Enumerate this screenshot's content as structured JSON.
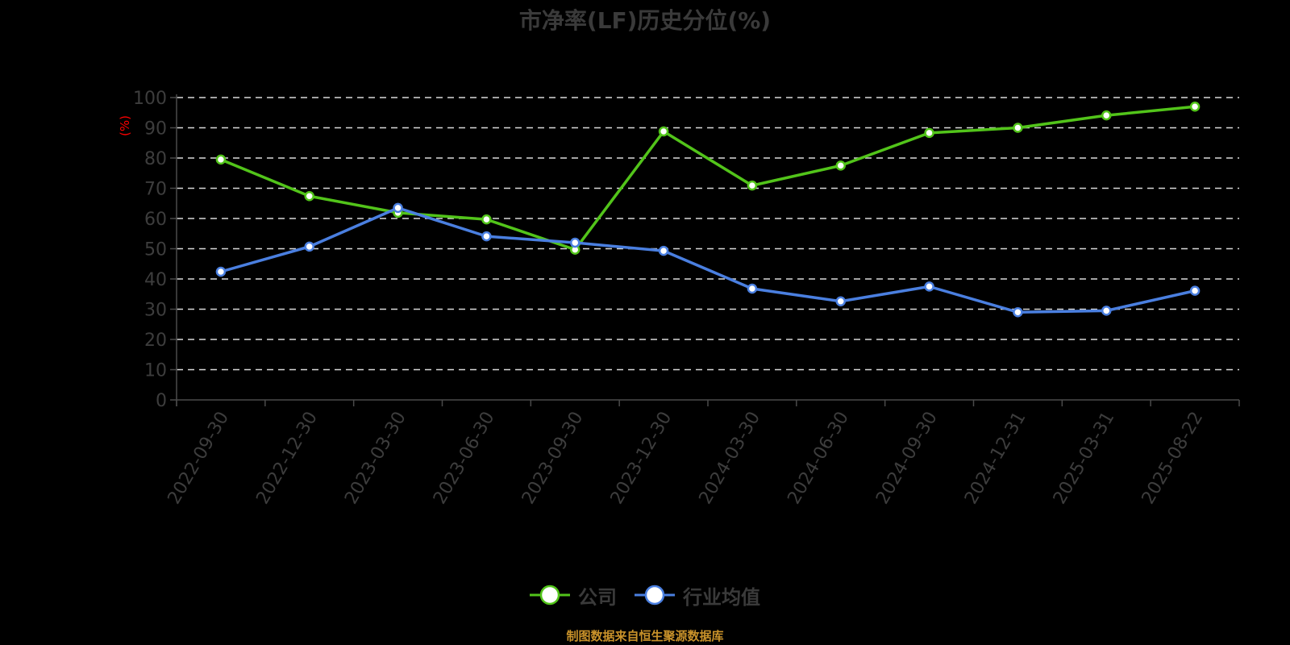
{
  "chart_data": {
    "type": "line",
    "title": "市净率(LF)历史分位(%)",
    "xlabel": "",
    "ylabel": "(%)",
    "ylim": [
      0,
      100
    ],
    "yticks": [
      0,
      10,
      20,
      30,
      40,
      50,
      60,
      70,
      80,
      90,
      100
    ],
    "grid": true,
    "legend_position": "bottom",
    "categories": [
      "2022-09-30",
      "2022-12-30",
      "2023-03-30",
      "2023-06-30",
      "2023-09-30",
      "2023-12-30",
      "2024-03-30",
      "2024-06-30",
      "2024-09-30",
      "2024-12-31",
      "2025-03-31",
      "2025-08-22"
    ],
    "series": [
      {
        "name": "公司",
        "color": "#52c41a",
        "values": [
          79.5,
          67.4,
          61.9,
          59.7,
          49.7,
          88.8,
          70.9,
          77.5,
          88.3,
          90.0,
          94.1,
          97.0
        ]
      },
      {
        "name": "行业均值",
        "color": "#4a7fe0",
        "values": [
          42.4,
          50.7,
          63.5,
          54.1,
          52.0,
          49.3,
          36.8,
          32.6,
          37.5,
          29.0,
          29.5,
          36.1
        ]
      }
    ]
  },
  "title": "市净率(LF)历史分位(%)",
  "y_axis_unit": "(%)",
  "legend": {
    "items": [
      {
        "label": "公司",
        "color": "#52c41a"
      },
      {
        "label": "行业均值",
        "color": "#4a7fe0"
      }
    ]
  },
  "source_note": "制图数据来自恒生聚源数据库",
  "colors": {
    "background": "#000000",
    "grid": "#d9d9d9",
    "axis": "#4a4a4a",
    "text": "#3d3d3d",
    "unit": "#ff0000",
    "source": "#c9922a"
  }
}
